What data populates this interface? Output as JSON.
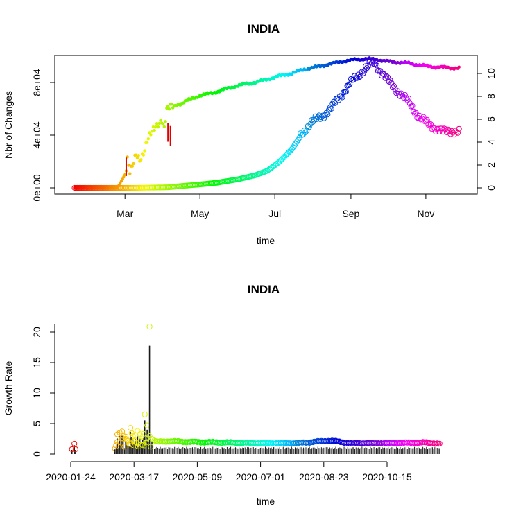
{
  "chart_data": [
    {
      "type": "scatter",
      "title": "INDIA",
      "xlabel": "time",
      "ylabel": "Nbr of Changes",
      "x_range": [
        "2020-01-14",
        "2020-12-01"
      ],
      "x_ticks": [
        "Mar",
        "May",
        "Jul",
        "Sep",
        "Nov"
      ],
      "y_left_ticks": [
        "0e+00",
        "4e+04",
        "8e+04"
      ],
      "y_left_lim": [
        0,
        105000
      ],
      "y_right_ticks": [
        "0",
        "2",
        "4",
        "6",
        "8",
        "10"
      ],
      "y_right_lim": [
        0,
        11.5
      ],
      "color_scale": "rainbow (red to orange to yellow to green to cyan to blue to violet to red over time)",
      "series": [
        {
          "marker": "filled dots",
          "axis": "left",
          "points": [
            [
              "2020-01-20",
              2
            ],
            [
              "2020-01-26",
              5
            ],
            [
              "2020-02-04",
              6
            ],
            [
              "2020-02-14",
              4
            ],
            [
              "2020-02-24",
              8
            ],
            [
              "2020-03-01",
              10000
            ],
            [
              "2020-03-03",
              23000
            ],
            [
              "2020-03-05",
              12000
            ],
            [
              "2020-03-07",
              15000
            ],
            [
              "2020-03-10",
              24000
            ],
            [
              "2020-03-13",
              22000
            ],
            [
              "2020-03-16",
              28000
            ],
            [
              "2020-03-19",
              36000
            ],
            [
              "2020-03-22",
              40000
            ],
            [
              "2020-03-25",
              44000
            ],
            [
              "2020-03-28",
              49000
            ],
            [
              "2020-03-31",
              53000
            ],
            [
              "2020-04-02",
              46000
            ],
            [
              "2020-04-04",
              59000
            ],
            [
              "2020-04-08",
              61000
            ],
            [
              "2020-04-12",
              63000
            ],
            [
              "2020-04-16",
              64000
            ],
            [
              "2020-04-20",
              66000
            ],
            [
              "2020-04-25",
              68000
            ],
            [
              "2020-05-01",
              70000
            ],
            [
              "2020-05-08",
              71500
            ],
            [
              "2020-05-15",
              73000
            ],
            [
              "2020-05-25",
              76000
            ],
            [
              "2020-06-05",
              78500
            ],
            [
              "2020-06-15",
              80000
            ],
            [
              "2020-06-25",
              82500
            ],
            [
              "2020-07-05",
              85000
            ],
            [
              "2020-07-15",
              87000
            ],
            [
              "2020-07-25",
              90000
            ],
            [
              "2020-08-05",
              92000
            ],
            [
              "2020-08-15",
              94000
            ],
            [
              "2020-08-25",
              96000
            ],
            [
              "2020-09-05",
              97500
            ],
            [
              "2020-09-15",
              98000
            ],
            [
              "2020-09-25",
              97000
            ],
            [
              "2020-10-05",
              95500
            ],
            [
              "2020-10-15",
              95000
            ],
            [
              "2020-10-25",
              93500
            ],
            [
              "2020-11-05",
              92000
            ],
            [
              "2020-11-15",
              91500
            ],
            [
              "2020-11-25",
              91000
            ]
          ]
        },
        {
          "marker": "open circles",
          "axis": "right",
          "points": [
            [
              "2020-01-20",
              0
            ],
            [
              "2020-02-15",
              0
            ],
            [
              "2020-03-10",
              0
            ],
            [
              "2020-04-05",
              0.05
            ],
            [
              "2020-04-20",
              0.2
            ],
            [
              "2020-05-01",
              0.3
            ],
            [
              "2020-05-15",
              0.45
            ],
            [
              "2020-06-01",
              0.75
            ],
            [
              "2020-06-15",
              1.1
            ],
            [
              "2020-06-25",
              1.5
            ],
            [
              "2020-07-05",
              2.3
            ],
            [
              "2020-07-15",
              3.4
            ],
            [
              "2020-07-22",
              4.5
            ],
            [
              "2020-07-30",
              5.7
            ],
            [
              "2020-08-08",
              6.2
            ],
            [
              "2020-08-16",
              7.0
            ],
            [
              "2020-08-24",
              8.1
            ],
            [
              "2020-08-31",
              9.1
            ],
            [
              "2020-09-07",
              9.8
            ],
            [
              "2020-09-13",
              10.5
            ],
            [
              "2020-09-20",
              10.9
            ],
            [
              "2020-09-27",
              10.0
            ],
            [
              "2020-10-04",
              9.0
            ],
            [
              "2020-10-11",
              8.3
            ],
            [
              "2020-10-18",
              7.5
            ],
            [
              "2020-10-25",
              6.4
            ],
            [
              "2020-11-01",
              5.7
            ],
            [
              "2020-11-08",
              5.3
            ],
            [
              "2020-11-15",
              4.9
            ],
            [
              "2020-11-22",
              5.0
            ],
            [
              "2020-11-28",
              4.9
            ]
          ]
        }
      ]
    },
    {
      "type": "scatter",
      "title": "INDIA",
      "xlabel": "time",
      "ylabel": "Growth Rate",
      "x_range": [
        "2020-01-14",
        "2020-12-01"
      ],
      "x_ticks": [
        "2020-01-24",
        "2020-03-17",
        "2020-05-09",
        "2020-07-01",
        "2020-08-23",
        "2020-10-15"
      ],
      "y_ticks": [
        "0",
        "5",
        "10",
        "15",
        "20"
      ],
      "y_lim": [
        0,
        21
      ],
      "color_scale": "rainbow (red to orange to yellow to green to cyan to blue to violet to red over time)",
      "marker": "open circles with vertical histogram bars",
      "points": [
        [
          "2020-01-25",
          0.8
        ],
        [
          "2020-01-27",
          1.7
        ],
        [
          "2020-01-28",
          0.8
        ],
        [
          "2020-03-01",
          0.9
        ],
        [
          "2020-03-03",
          2.0
        ],
        [
          "2020-03-05",
          3.5
        ],
        [
          "2020-03-07",
          3.7
        ],
        [
          "2020-03-10",
          2.5
        ],
        [
          "2020-03-12",
          1.5
        ],
        [
          "2020-03-14",
          4.3
        ],
        [
          "2020-03-16",
          3.0
        ],
        [
          "2020-03-18",
          2.2
        ],
        [
          "2020-03-20",
          3.8
        ],
        [
          "2020-03-22",
          1.3
        ],
        [
          "2020-03-24",
          2.8
        ],
        [
          "2020-03-26",
          6.5
        ],
        [
          "2020-03-28",
          4.7
        ],
        [
          "2020-03-30",
          20.9
        ],
        [
          "2020-04-01",
          2.5
        ],
        [
          "2020-04-05",
          2.0
        ],
        [
          "2020-04-15",
          2.1
        ],
        [
          "2020-05-01",
          2.0
        ],
        [
          "2020-06-01",
          1.9
        ],
        [
          "2020-07-01",
          1.8
        ],
        [
          "2020-08-01",
          1.8
        ],
        [
          "2020-08-28",
          2.2
        ],
        [
          "2020-09-15",
          1.8
        ],
        [
          "2020-10-15",
          1.8
        ],
        [
          "2020-11-15",
          1.9
        ],
        [
          "2020-11-28",
          1.7
        ]
      ]
    }
  ]
}
